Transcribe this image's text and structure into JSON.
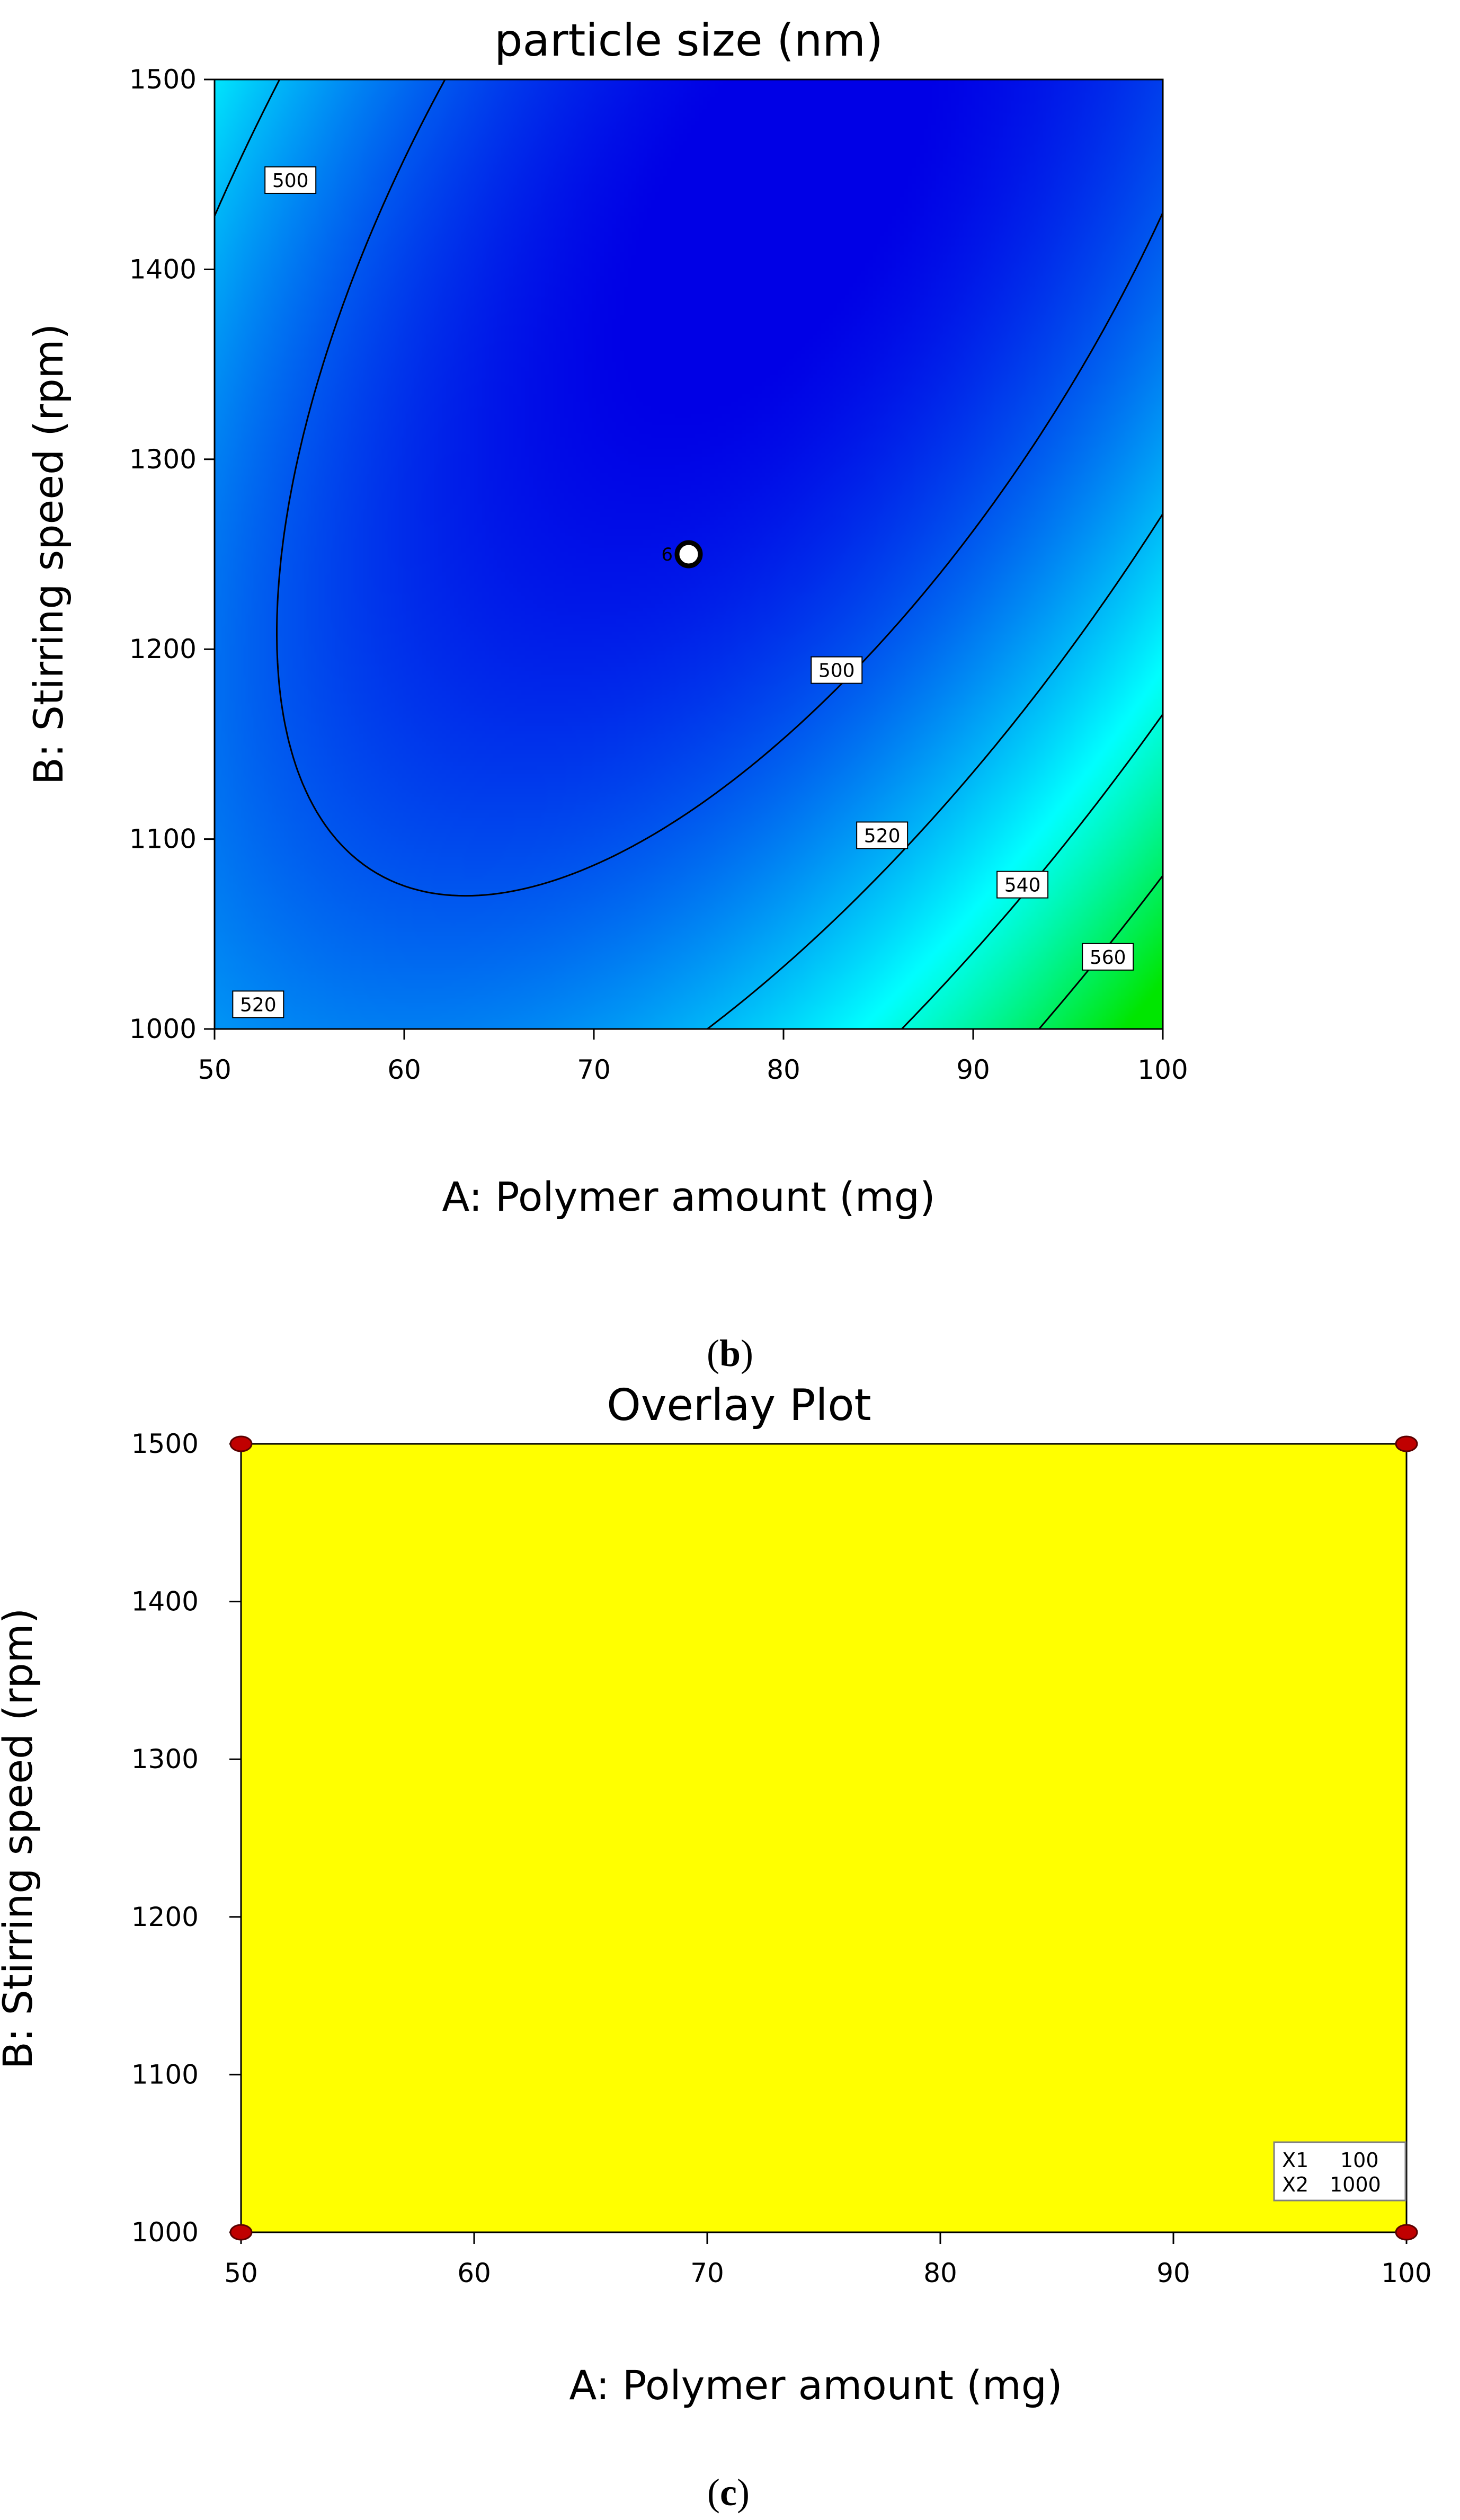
{
  "chart_data": [
    {
      "type": "contour",
      "title": "particle size (nm)",
      "xlabel": "A: Polymer amount (mg)",
      "ylabel": "B: Stirring speed (rpm)",
      "xlim": [
        50,
        100
      ],
      "ylim": [
        1000,
        1500
      ],
      "x_ticks": [
        "50",
        "60",
        "70",
        "80",
        "90",
        "100"
      ],
      "y_ticks": [
        "1000",
        "1100",
        "1200",
        "1300",
        "1400",
        "1500"
      ],
      "colors": {
        "low": "#0000e6",
        "mid": "#00ffff",
        "high": "#00e600"
      },
      "contours": [
        {
          "level": 500,
          "label": "500"
        },
        {
          "level": 520,
          "label": "520"
        },
        {
          "level": 540,
          "label": "540"
        },
        {
          "level": 560,
          "label": "560"
        }
      ],
      "contour_labels": [
        {
          "text": "500",
          "x": 54,
          "y": 1447
        },
        {
          "text": "500",
          "x": 82.8,
          "y": 1189
        },
        {
          "text": "520",
          "x": 85.2,
          "y": 1102
        },
        {
          "text": "540",
          "x": 92.6,
          "y": 1076
        },
        {
          "text": "560",
          "x": 97.1,
          "y": 1038
        },
        {
          "text": "520",
          "x": 52.3,
          "y": 1013
        }
      ],
      "design_points": [
        {
          "x": 75,
          "y": 1250,
          "label": "6"
        }
      ]
    },
    {
      "type": "overlay",
      "panel_label": "b",
      "title": "Overlay Plot",
      "xlabel": "A: Polymer amount (mg)",
      "ylabel": "B: Stirring speed (rpm)",
      "xlim": [
        50,
        100
      ],
      "ylim": [
        1000,
        1500
      ],
      "x_ticks": [
        "50",
        "60",
        "70",
        "80",
        "90",
        "100"
      ],
      "y_ticks": [
        "1000",
        "1100",
        "1200",
        "1300",
        "1400",
        "1500"
      ],
      "fill_color": "#ffff00",
      "design_points": [
        {
          "x": 50,
          "y": 1500
        },
        {
          "x": 100,
          "y": 1500
        },
        {
          "x": 50,
          "y": 1000
        },
        {
          "x": 100,
          "y": 1000
        }
      ],
      "flag": {
        "x1_label": "X1",
        "x1_value": "100",
        "x2_label": "X2",
        "x2_value": "1000"
      }
    }
  ],
  "bottom_caption": "c"
}
